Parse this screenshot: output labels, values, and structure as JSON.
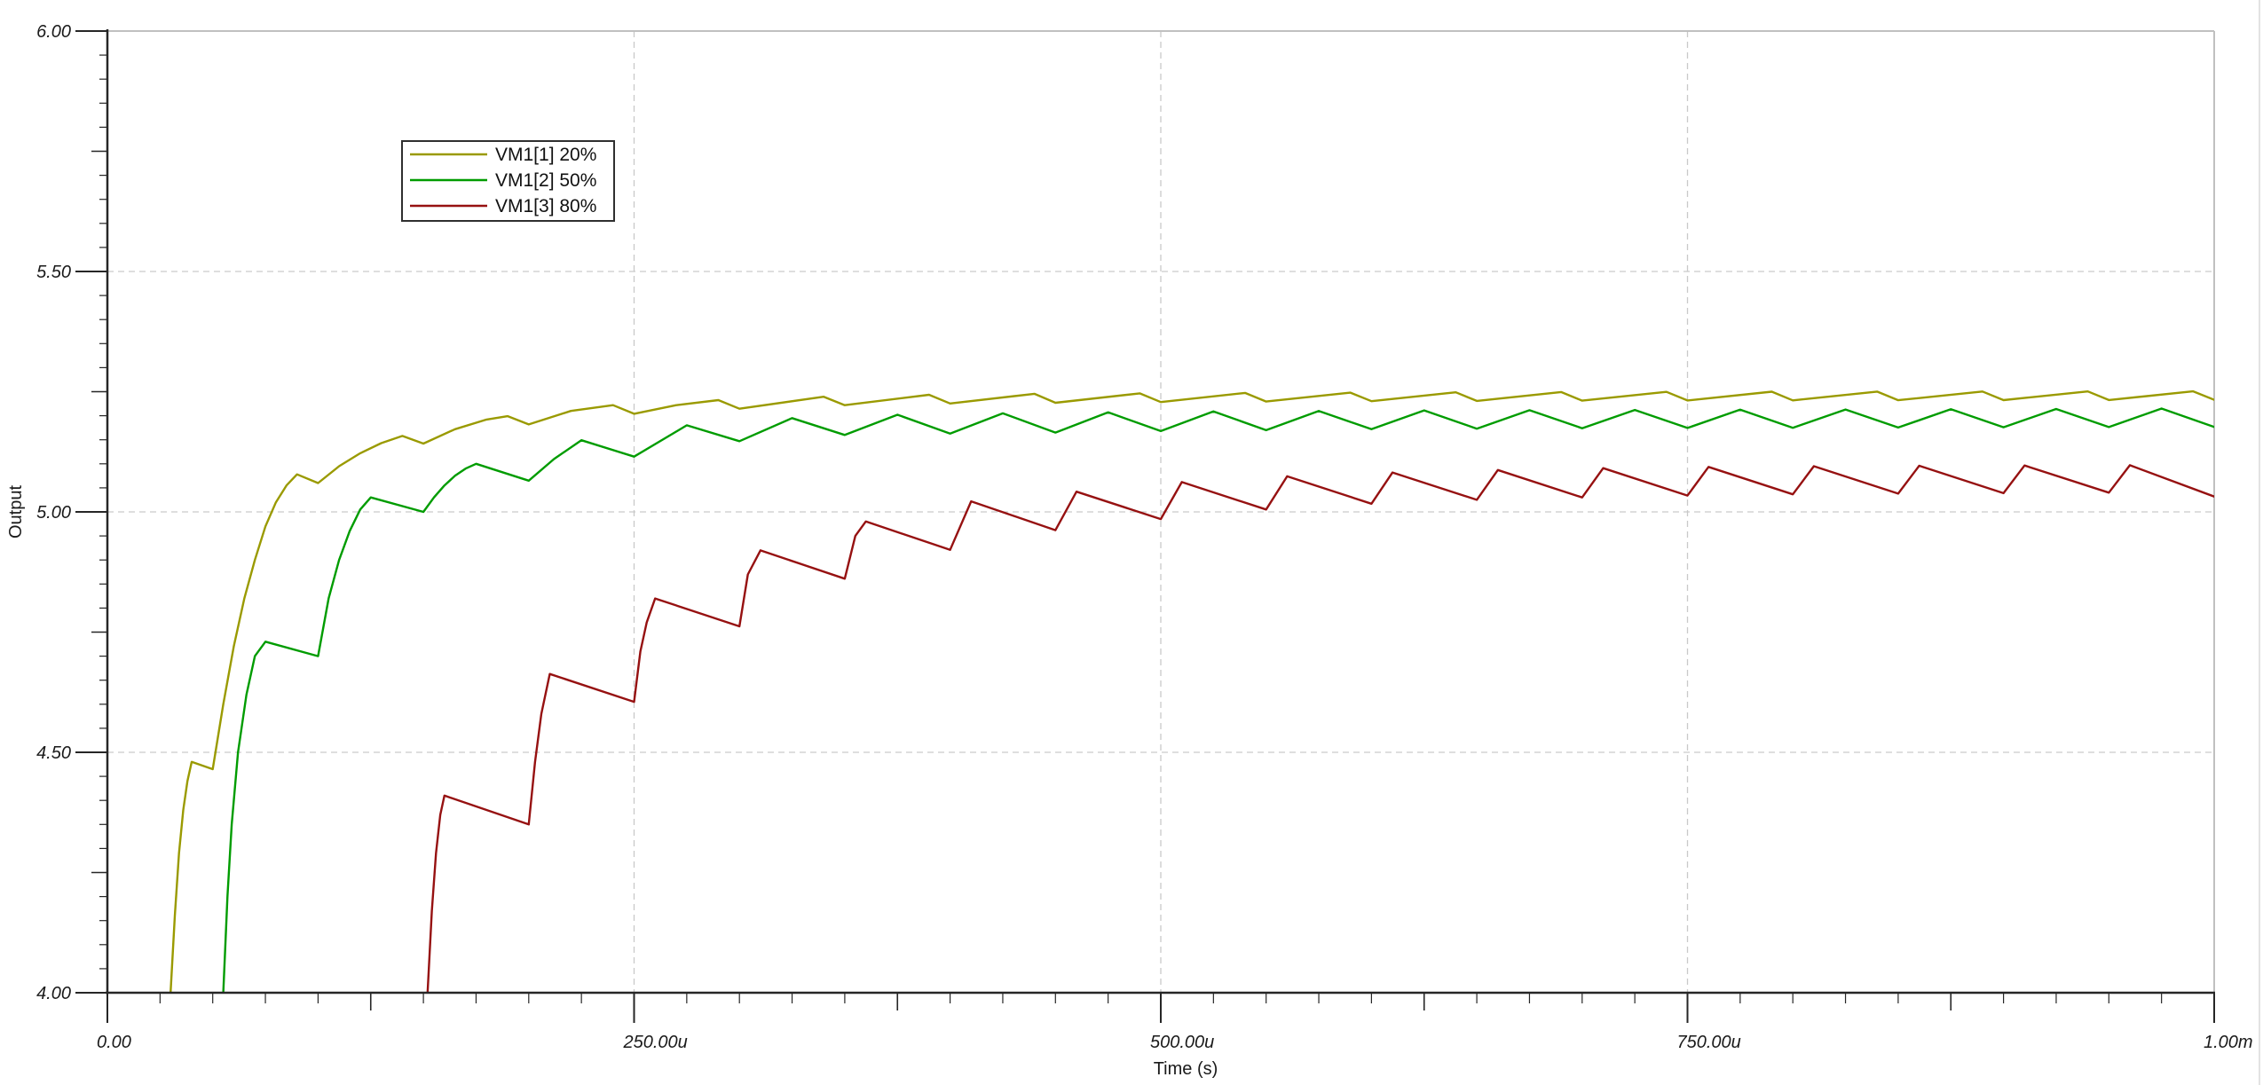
{
  "window": {
    "background": "#ffffff"
  },
  "colors": {
    "axis": "#262626",
    "text": "#1a1a1a",
    "grid": "#c9c9c9",
    "plot_border": "#c0c0c0",
    "screen_edge": "#dadada",
    "legend_border": "#2f2f2f",
    "legend_fill": "#ffffff"
  },
  "chart_data": {
    "type": "line",
    "title": "",
    "xlabel": "Time (s)",
    "ylabel": "Output",
    "x_unit": "seconds (ticks in microseconds)",
    "xlim_us": [
      0,
      1000
    ],
    "ylim": [
      4.0,
      6.0
    ],
    "grid": {
      "style": "dashed",
      "x_us": [
        250,
        500,
        750
      ],
      "y_v": [
        5.5,
        5.0,
        4.5
      ]
    },
    "x_major_ticks": [
      {
        "us": 0,
        "label": "0.00"
      },
      {
        "us": 250,
        "label": "250.00u"
      },
      {
        "us": 500,
        "label": "500.00u"
      },
      {
        "us": 750,
        "label": "750.00u"
      },
      {
        "us": 1000,
        "label": "1.00m"
      }
    ],
    "y_major_ticks": [
      {
        "v": 6.0,
        "label": "6.00"
      },
      {
        "v": 5.5,
        "label": "5.50"
      },
      {
        "v": 5.0,
        "label": "5.00"
      },
      {
        "v": 4.5,
        "label": "4.50"
      },
      {
        "v": 4.0,
        "label": "4.00"
      }
    ],
    "x_medium_ticks_us": [
      125,
      375,
      625,
      875
    ],
    "y_medium_ticks_v": [
      5.75,
      5.25,
      4.75,
      4.25
    ],
    "x_minor_step_us": 25,
    "y_minor_step_v": 0.05,
    "legend_position": "top-left",
    "switching_period_us": 50,
    "series": [
      {
        "name": "VM1[1] 20%",
        "color": "#9A9A00",
        "duty": "20%",
        "points_us_v": [
          [
            29,
            3.85
          ],
          [
            30,
            4.0
          ],
          [
            32,
            4.16
          ],
          [
            34,
            4.29
          ],
          [
            36,
            4.38
          ],
          [
            38,
            4.44
          ],
          [
            40,
            4.48
          ],
          [
            50,
            4.465
          ],
          [
            55,
            4.6
          ],
          [
            60,
            4.72
          ],
          [
            65,
            4.82
          ],
          [
            70,
            4.9
          ],
          [
            75,
            4.97
          ],
          [
            80,
            5.02
          ],
          [
            85,
            5.055
          ],
          [
            90,
            5.078
          ],
          [
            100,
            5.06
          ],
          [
            110,
            5.095
          ],
          [
            120,
            5.122
          ],
          [
            130,
            5.143
          ],
          [
            140,
            5.158
          ],
          [
            150,
            5.142
          ],
          [
            165,
            5.172
          ],
          [
            180,
            5.192
          ],
          [
            190,
            5.199
          ],
          [
            200,
            5.182
          ],
          [
            220,
            5.21
          ],
          [
            240,
            5.222
          ],
          [
            250,
            5.204
          ],
          [
            270,
            5.222
          ],
          [
            290,
            5.2325
          ],
          [
            300,
            5.2145
          ],
          [
            340,
            5.2395
          ],
          [
            350,
            5.222
          ],
          [
            390,
            5.2435
          ],
          [
            400,
            5.2255
          ],
          [
            440,
            5.2455
          ],
          [
            450,
            5.227
          ],
          [
            490,
            5.2465
          ],
          [
            500,
            5.2285
          ],
          [
            540,
            5.2475
          ],
          [
            550,
            5.2295
          ],
          [
            590,
            5.248
          ],
          [
            600,
            5.2303
          ],
          [
            640,
            5.2487
          ],
          [
            650,
            5.2308
          ],
          [
            690,
            5.2492
          ],
          [
            700,
            5.2313
          ],
          [
            740,
            5.2497
          ],
          [
            750,
            5.2318
          ],
          [
            790,
            5.25
          ],
          [
            800,
            5.232
          ],
          [
            840,
            5.2502
          ],
          [
            850,
            5.2322
          ],
          [
            890,
            5.2504
          ],
          [
            900,
            5.2324
          ],
          [
            940,
            5.2506
          ],
          [
            950,
            5.2326
          ],
          [
            990,
            5.2508
          ],
          [
            1000,
            5.233
          ]
        ]
      },
      {
        "name": "VM1[2] 50%",
        "color": "#009C00",
        "duty": "50%",
        "points_us_v": [
          [
            54,
            3.85
          ],
          [
            55,
            4.0
          ],
          [
            57,
            4.2
          ],
          [
            59,
            4.35
          ],
          [
            62,
            4.5
          ],
          [
            66,
            4.62
          ],
          [
            70,
            4.7
          ],
          [
            75,
            4.73
          ],
          [
            100,
            4.7
          ],
          [
            105,
            4.82
          ],
          [
            110,
            4.9
          ],
          [
            115,
            4.96
          ],
          [
            120,
            5.005
          ],
          [
            125,
            5.03
          ],
          [
            150,
            5.0
          ],
          [
            155,
            5.03
          ],
          [
            160,
            5.055
          ],
          [
            165,
            5.075
          ],
          [
            170,
            5.09
          ],
          [
            175,
            5.1
          ],
          [
            200,
            5.065
          ],
          [
            212,
            5.11
          ],
          [
            225,
            5.149
          ],
          [
            250,
            5.115
          ],
          [
            275,
            5.18
          ],
          [
            300,
            5.147
          ],
          [
            325,
            5.195
          ],
          [
            350,
            5.16
          ],
          [
            375,
            5.202
          ],
          [
            400,
            5.163
          ],
          [
            425,
            5.205
          ],
          [
            450,
            5.165
          ],
          [
            475,
            5.207
          ],
          [
            500,
            5.168
          ],
          [
            525,
            5.209
          ],
          [
            550,
            5.17
          ],
          [
            575,
            5.21
          ],
          [
            600,
            5.172
          ],
          [
            625,
            5.211
          ],
          [
            650,
            5.173
          ],
          [
            675,
            5.2115
          ],
          [
            700,
            5.174
          ],
          [
            725,
            5.212
          ],
          [
            750,
            5.1745
          ],
          [
            775,
            5.2125
          ],
          [
            800,
            5.175
          ],
          [
            825,
            5.213
          ],
          [
            850,
            5.1755
          ],
          [
            875,
            5.2135
          ],
          [
            900,
            5.176
          ],
          [
            925,
            5.214
          ],
          [
            950,
            5.1763
          ],
          [
            975,
            5.215
          ],
          [
            1000,
            5.1766
          ]
        ]
      },
      {
        "name": "VM1[3] 80%",
        "color": "#961111",
        "duty": "80%",
        "points_us_v": [
          [
            150.5,
            3.85
          ],
          [
            152,
            4.0
          ],
          [
            154,
            4.17
          ],
          [
            156,
            4.29
          ],
          [
            158,
            4.37
          ],
          [
            160,
            4.41
          ],
          [
            200,
            4.35
          ],
          [
            203,
            4.48
          ],
          [
            206,
            4.58
          ],
          [
            210,
            4.663
          ],
          [
            250,
            4.605
          ],
          [
            253,
            4.71
          ],
          [
            256,
            4.77
          ],
          [
            260,
            4.82
          ],
          [
            300,
            4.762
          ],
          [
            304,
            4.87
          ],
          [
            310,
            4.92
          ],
          [
            350,
            4.861
          ],
          [
            355,
            4.95
          ],
          [
            360,
            4.98
          ],
          [
            400,
            4.921
          ],
          [
            410,
            5.022
          ],
          [
            450,
            4.962
          ],
          [
            460,
            5.042
          ],
          [
            500,
            4.985
          ],
          [
            510,
            5.062
          ],
          [
            550,
            5.005
          ],
          [
            560,
            5.074
          ],
          [
            600,
            5.017
          ],
          [
            610,
            5.082
          ],
          [
            650,
            5.025
          ],
          [
            660,
            5.087
          ],
          [
            700,
            5.03
          ],
          [
            710,
            5.091
          ],
          [
            750,
            5.034
          ],
          [
            760,
            5.0935
          ],
          [
            800,
            5.0365
          ],
          [
            810,
            5.095
          ],
          [
            850,
            5.038
          ],
          [
            860,
            5.096
          ],
          [
            900,
            5.039
          ],
          [
            910,
            5.0965
          ],
          [
            950,
            5.04
          ],
          [
            960,
            5.097
          ],
          [
            1000,
            5.032
          ]
        ]
      }
    ]
  }
}
